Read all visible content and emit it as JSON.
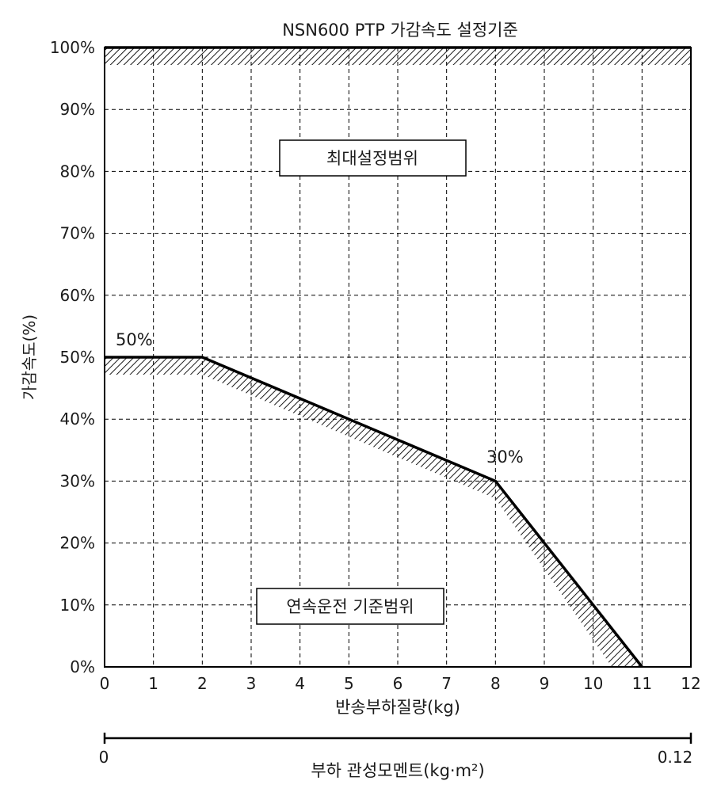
{
  "chart_data": {
    "type": "line",
    "title": "NSN600 PTP 가감속도 설정기준",
    "xlabel": "반송부하질량(kg)",
    "ylabel": "가감속도(%)",
    "xlim": [
      0,
      12
    ],
    "ylim": [
      0,
      100
    ],
    "x_ticks": [
      "0",
      "1",
      "2",
      "3",
      "4",
      "5",
      "6",
      "7",
      "8",
      "9",
      "10",
      "11",
      "12"
    ],
    "y_ticks": [
      "0%",
      "10%",
      "20%",
      "30%",
      "40%",
      "50%",
      "60%",
      "70%",
      "80%",
      "90%",
      "100%"
    ],
    "grid": true,
    "series": [
      {
        "x": [
          0,
          2,
          8,
          11
        ],
        "y": [
          50,
          50,
          30,
          0
        ]
      }
    ],
    "max_limit_line": {
      "y": 100
    },
    "annotations": [
      {
        "text": "50%",
        "x": 0,
        "y": 50
      },
      {
        "text": "30%",
        "x": 8,
        "y": 30
      }
    ],
    "region_labels": {
      "max_range": "최대설정범위",
      "continuous_range": "연속운전 기준범위"
    },
    "secondary_axis": {
      "label": "부하 관성모멘트(kg·m²)",
      "min_label": "0",
      "max_label": "0.12"
    },
    "colors": {
      "line": "#000000",
      "grid": "#000000",
      "text": "#1a1a1a"
    }
  }
}
